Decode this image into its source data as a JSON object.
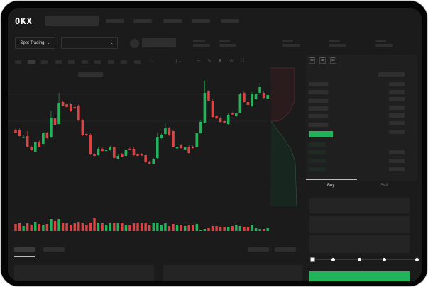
{
  "header": {
    "logo": "OKX",
    "nav_item_count": 5
  },
  "toolbar": {
    "market_selector": "Spot Trading",
    "pair_dropdown": ""
  },
  "chart": {
    "type": "candlestick",
    "colors": {
      "up": "#22b45a",
      "down": "#d94444"
    },
    "candles": [
      [
        118,
        114,
        118,
        114
      ],
      [
        118,
        109,
        118,
        109
      ],
      [
        107,
        108,
        108,
        107
      ],
      [
        109,
        94,
        114,
        94
      ],
      [
        93,
        89,
        93,
        89
      ],
      [
        87,
        100,
        100,
        86
      ],
      [
        101,
        94,
        101,
        94
      ],
      [
        98,
        114,
        114,
        98
      ],
      [
        113,
        106,
        113,
        106
      ],
      [
        107,
        135,
        143,
        107
      ],
      [
        134,
        125,
        134,
        125
      ],
      [
        126,
        155,
        168,
        126
      ],
      [
        157,
        152,
        157,
        152
      ],
      [
        154,
        150,
        154,
        150
      ],
      [
        154,
        144,
        154,
        144
      ],
      [
        150,
        148,
        150,
        148
      ],
      [
        152,
        131,
        152,
        131
      ],
      [
        131,
        110,
        131,
        110
      ],
      [
        112,
        110,
        112,
        110
      ],
      [
        111,
        83,
        111,
        83
      ],
      [
        83,
        81,
        83,
        81
      ],
      [
        82,
        91,
        91,
        82
      ],
      [
        91,
        88,
        91,
        88
      ],
      [
        88,
        90,
        90,
        88
      ],
      [
        89,
        93,
        93,
        89
      ],
      [
        93,
        78,
        93,
        78
      ],
      [
        77,
        81,
        81,
        77
      ],
      [
        83,
        80,
        83,
        80
      ],
      [
        81,
        90,
        90,
        81
      ],
      [
        91,
        90,
        91,
        90
      ],
      [
        91,
        82,
        91,
        82
      ],
      [
        83,
        81,
        83,
        81
      ],
      [
        83,
        82,
        83,
        82
      ],
      [
        82,
        72,
        82,
        72
      ],
      [
        72,
        70,
        72,
        70
      ],
      [
        70,
        76,
        76,
        70
      ],
      [
        78,
        107,
        112,
        78
      ],
      [
        106,
        111,
        111,
        106
      ],
      [
        112,
        120,
        126,
        112
      ],
      [
        120,
        110,
        120,
        110
      ],
      [
        116,
        94,
        116,
        94
      ],
      [
        92,
        93,
        93,
        92
      ],
      [
        96,
        92,
        96,
        92
      ],
      [
        90,
        93,
        93,
        90
      ],
      [
        94,
        85,
        94,
        85
      ],
      [
        94,
        92,
        94,
        92
      ],
      [
        93,
        113,
        117,
        93
      ],
      [
        113,
        129,
        129,
        113
      ],
      [
        128,
        170,
        185,
        128
      ],
      [
        172,
        159,
        172,
        159
      ],
      [
        159,
        136,
        159,
        136
      ],
      [
        137,
        134,
        137,
        134
      ],
      [
        134,
        129,
        134,
        129
      ],
      [
        130,
        128,
        130,
        128
      ],
      [
        126,
        139,
        139,
        126
      ],
      [
        141,
        140,
        141,
        140
      ],
      [
        137,
        141,
        141,
        137
      ],
      [
        142,
        168,
        168,
        142
      ],
      [
        170,
        157,
        170,
        157
      ],
      [
        157,
        153,
        157,
        153
      ],
      [
        151,
        169,
        169,
        151
      ],
      [
        161,
        169,
        169,
        161
      ],
      [
        170,
        178,
        182,
        170
      ],
      [
        170,
        163,
        170,
        163
      ],
      [
        162,
        167,
        167,
        162
      ]
    ],
    "volumes": [
      10,
      11,
      7,
      11,
      8,
      13,
      10,
      9,
      10,
      17,
      14,
      17,
      12,
      11,
      8,
      11,
      13,
      11,
      8,
      12,
      18,
      12,
      11,
      8,
      11,
      12,
      11,
      12,
      9,
      9,
      11,
      12,
      11,
      12,
      9,
      12,
      12,
      8,
      11,
      7,
      10,
      8,
      9,
      7,
      9,
      8,
      10,
      2,
      3,
      4,
      7,
      7,
      6,
      6,
      6,
      7,
      9,
      7,
      6,
      6,
      8,
      4,
      3,
      3,
      4
    ]
  },
  "orderbook": {
    "icons": [
      "both-sides-icon",
      "bids-icon",
      "asks-icon"
    ],
    "mid_color": "#22b45a"
  },
  "trade": {
    "buy_tab": "Buy",
    "sell_tab": "Sell",
    "slider_percent": 0,
    "submit_color": "#22b45a"
  }
}
